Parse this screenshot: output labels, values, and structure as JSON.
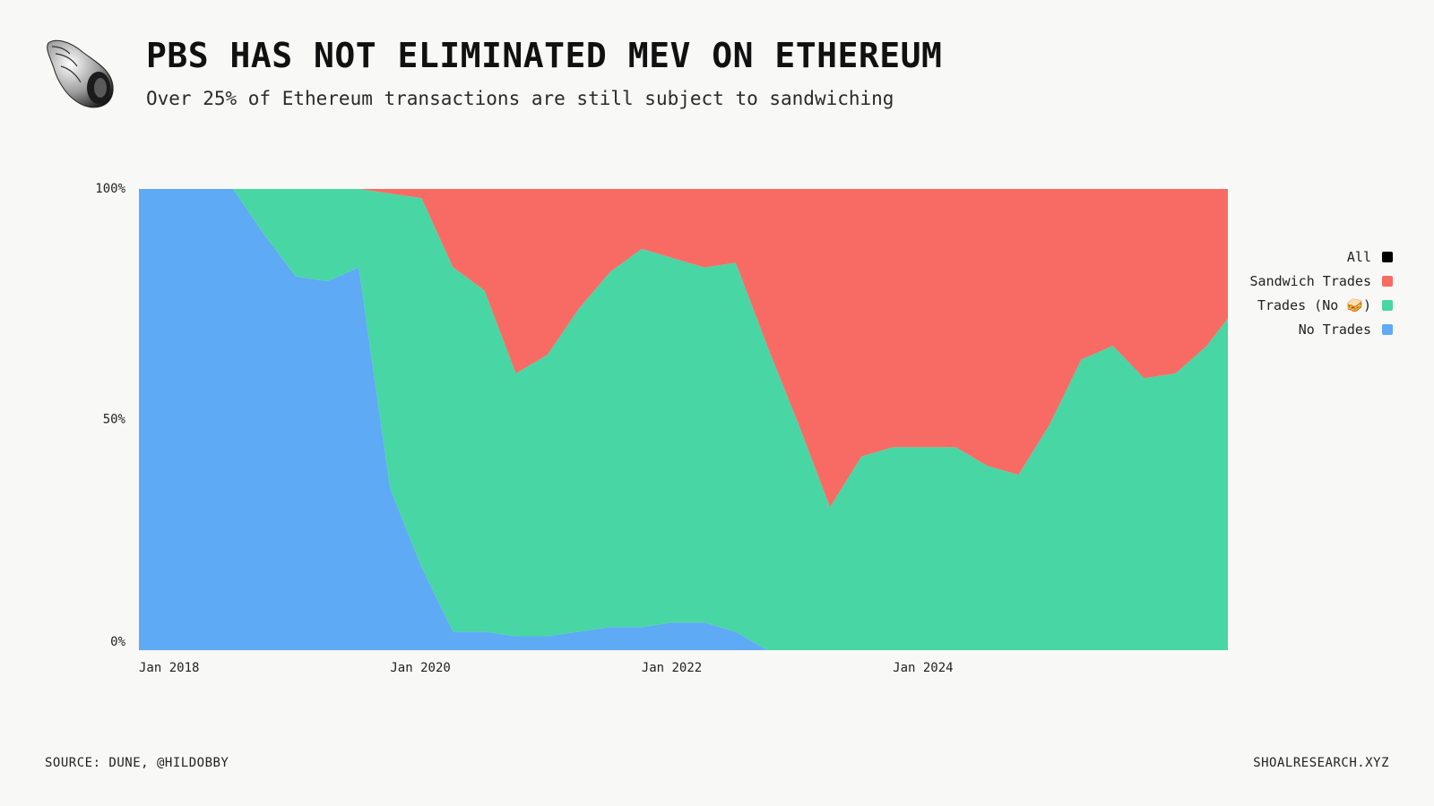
{
  "header": {
    "title": "PBS HAS NOT ELIMINATED MEV ON ETHEREUM",
    "subtitle": "Over 25% of Ethereum transactions are still subject to sandwiching",
    "logo_icon": "seashell-icon"
  },
  "legend": {
    "items": [
      {
        "label": "All",
        "color": "#000000"
      },
      {
        "label": "Sandwich Trades",
        "color": "#f76b64"
      },
      {
        "label": "Trades (No 🥪)",
        "color": "#48d6a4"
      },
      {
        "label": "No Trades",
        "color": "#5eaaf5"
      }
    ]
  },
  "footer": {
    "source": "SOURCE: DUNE, @HILDOBBY",
    "site": "SHOALRESEARCH.XYZ"
  },
  "chart_data": {
    "type": "area",
    "stacked": true,
    "normalized": true,
    "x_ticks": [
      "Jan 2018",
      "Jan 2020",
      "Jan 2022",
      "Jan 2024"
    ],
    "y_ticks": [
      "0%",
      "50%",
      "100%"
    ],
    "ylim": [
      0,
      100
    ],
    "xlim": [
      "2018-01",
      "2026-09"
    ],
    "legend_position": "right",
    "x": [
      "2018-01",
      "2018-04",
      "2018-07",
      "2018-10",
      "2019-01",
      "2019-04",
      "2019-07",
      "2019-10",
      "2020-01",
      "2020-04",
      "2020-07",
      "2020-10",
      "2021-01",
      "2021-04",
      "2021-07",
      "2021-10",
      "2022-01",
      "2022-04",
      "2022-07",
      "2022-10",
      "2023-01",
      "2023-04",
      "2023-07",
      "2023-10",
      "2024-01",
      "2024-04",
      "2024-07",
      "2024-10",
      "2025-01",
      "2025-04",
      "2025-07",
      "2025-10",
      "2026-01",
      "2026-04",
      "2026-07",
      "2026-09"
    ],
    "series": [
      {
        "name": "No Trades",
        "color": "#5eaaf5",
        "values": [
          100,
          100,
          100,
          100,
          90,
          81,
          80,
          83,
          35,
          18,
          4,
          4,
          3,
          3,
          4,
          5,
          5,
          6,
          6,
          4,
          0,
          0,
          0,
          0,
          0,
          0,
          0,
          0,
          0,
          0,
          0,
          0,
          0,
          0,
          0,
          0
        ]
      },
      {
        "name": "Trades (No 🥪)",
        "color": "#48d6a4",
        "values": [
          0,
          0,
          0,
          0,
          10,
          19,
          20,
          17,
          64,
          80,
          79,
          74,
          57,
          61,
          70,
          77,
          82,
          79,
          77,
          80,
          66,
          49,
          31,
          42,
          44,
          44,
          44,
          40,
          38,
          49,
          63,
          66,
          59,
          60,
          66,
          72
        ]
      },
      {
        "name": "Sandwich Trades",
        "color": "#f76b64",
        "values": [
          0,
          0,
          0,
          0,
          0,
          0,
          0,
          0,
          1,
          2,
          17,
          22,
          40,
          36,
          26,
          18,
          13,
          15,
          17,
          16,
          34,
          51,
          69,
          58,
          56,
          56,
          56,
          60,
          62,
          51,
          37,
          34,
          41,
          40,
          34,
          28
        ]
      }
    ]
  }
}
